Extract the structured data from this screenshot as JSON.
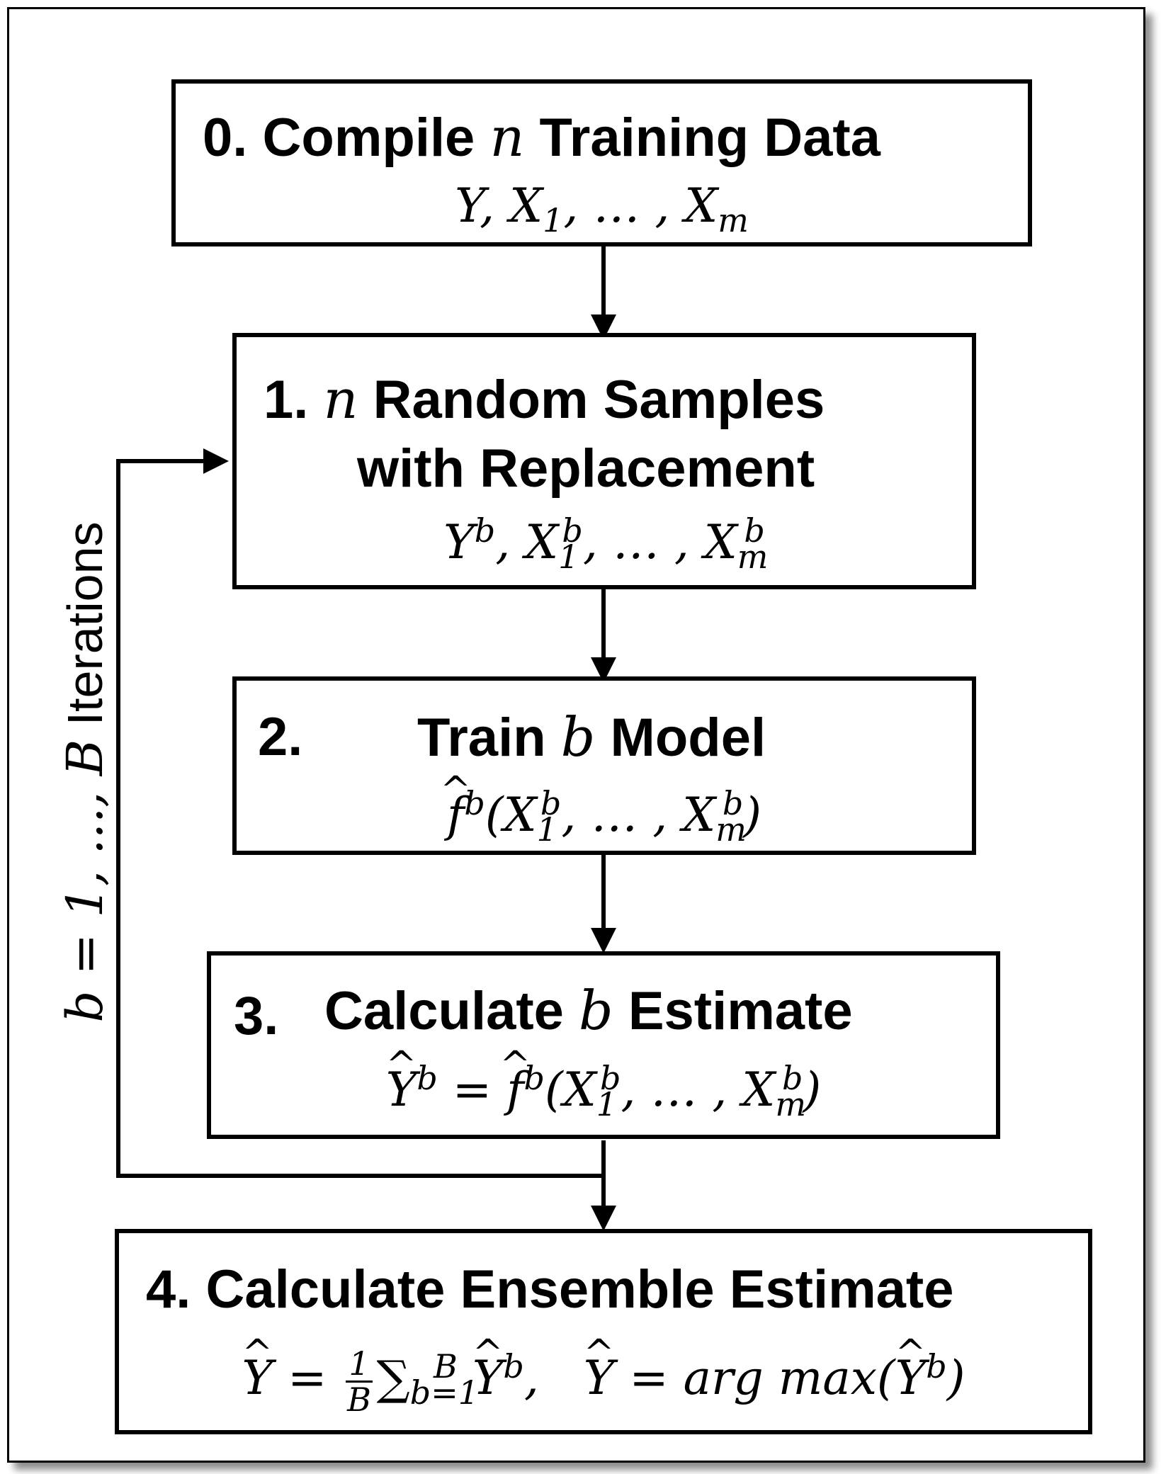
{
  "steps": [
    {
      "number": "0.",
      "title_pre": "Compile",
      "title_var": "n",
      "title_post": "Training Data",
      "formula": "Y, X1, ..., Xm"
    },
    {
      "number": "1.",
      "title_var": "n",
      "title_line1": "Random Samples",
      "title_line2": "with Replacement",
      "formula": "Y^b, X1^b, ..., Xm^b"
    },
    {
      "number": "2.",
      "title_pre": "Train",
      "title_var": "b",
      "title_post": "Model",
      "formula": "f^b(X1^b, ..., Xm^b)"
    },
    {
      "number": "3.",
      "title_pre": "Calculate",
      "title_var": "b",
      "title_post": "Estimate",
      "formula": "Y^b = f^b(X1^b, ..., Xm^b)"
    },
    {
      "number": "4.",
      "title": "Calculate Ensemble Estimate",
      "formula": "Y = 1/B Σ_{b=1}^{B} Y^b,   Y = arg max(Y^b)"
    }
  ],
  "loop_label": {
    "pre": "b = 1, ..., ",
    "var": "B",
    "post": " Iterations"
  }
}
